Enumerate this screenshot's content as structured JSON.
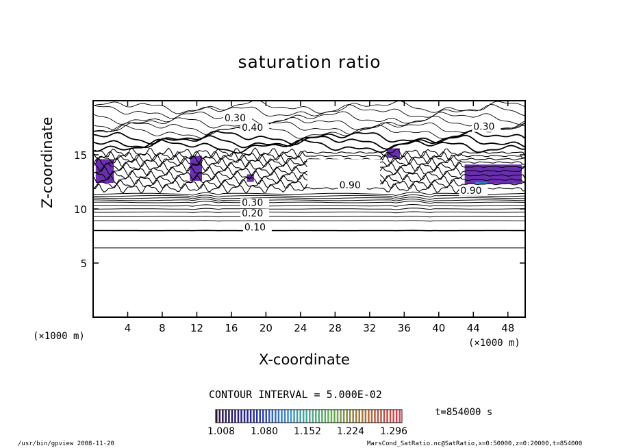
{
  "chart_data": {
    "type": "contour",
    "title": "saturation ratio",
    "xlabel": "X-coordinate",
    "ylabel": "Z-coordinate",
    "x_unit": "(×1000 m)",
    "y_unit": "(×1000 m)",
    "xlim": [
      0,
      50
    ],
    "ylim": [
      0,
      20
    ],
    "x_ticks": [
      4,
      8,
      12,
      16,
      20,
      24,
      28,
      32,
      36,
      40,
      44,
      48
    ],
    "y_ticks": [
      5,
      10,
      15
    ],
    "contour_interval": "CONTOUR INTERVAL = 5.000E-02",
    "contour_labels": [
      {
        "text": "0.10",
        "x": 17.5,
        "y": 8.0
      },
      {
        "text": "0.20",
        "x": 17.2,
        "y": 9.3
      },
      {
        "text": "0.30",
        "x": 17.2,
        "y": 10.3
      },
      {
        "text": "0.30",
        "x": 15.2,
        "y": 18.1
      },
      {
        "text": "0.40",
        "x": 17.2,
        "y": 17.2
      },
      {
        "text": "0.30",
        "x": 44.0,
        "y": 17.3
      },
      {
        "text": "0.90",
        "x": 28.5,
        "y": 11.9
      },
      {
        "text": "0.90",
        "x": 42.5,
        "y": 11.4
      }
    ],
    "horizontal_contours_z": [
      6.4,
      8.0,
      8.9,
      9.3,
      9.7,
      10.0,
      10.3,
      10.6,
      10.8,
      11.0,
      11.2,
      11.4
    ],
    "colorbar": {
      "labels": [
        "1.008",
        "1.080",
        "1.152",
        "1.224",
        "1.296"
      ],
      "min": 1.008,
      "max": 1.296
    },
    "time_label": "t=854000 s",
    "supersaturated_regions": [
      {
        "x0": 0.3,
        "x1": 2.4,
        "z0": 12.4,
        "z1": 14.6
      },
      {
        "x0": 11.2,
        "x1": 12.6,
        "z0": 12.6,
        "z1": 14.9
      },
      {
        "x0": 43.0,
        "x1": 49.6,
        "z0": 12.3,
        "z1": 14.1
      },
      {
        "x0": 34.0,
        "x1": 35.5,
        "z0": 14.7,
        "z1": 15.6
      },
      {
        "x0": 17.8,
        "x1": 18.6,
        "z0": 12.5,
        "z1": 13.2
      }
    ]
  },
  "footer": {
    "left": "/usr/bin/gpview  2008-11-20",
    "right": "MarsCond_SatRatio.nc@SatRatio,x=0:50000,z=0:20000,t=854000"
  }
}
